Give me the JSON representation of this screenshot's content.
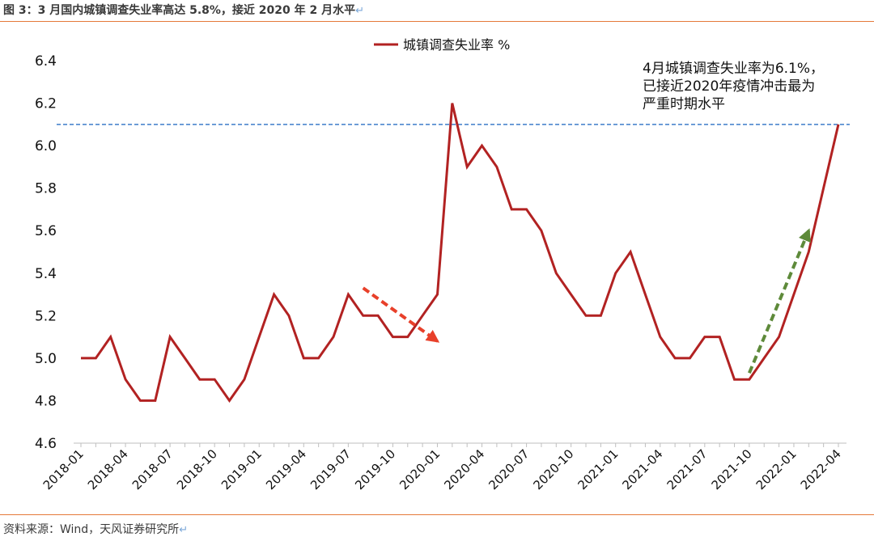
{
  "caption": "图 3：3 月国内城镇调查失业率高达 5.8%，接近 2020 年 2 月水平",
  "source": "资料来源：Wind，天风证券研究所",
  "chart_data": {
    "type": "line",
    "title": "",
    "xlabel": "",
    "ylabel": "",
    "ylim": [
      4.6,
      6.4
    ],
    "yticks": [
      "4.6",
      "4.8",
      "5.0",
      "5.2",
      "5.4",
      "5.6",
      "5.8",
      "6.0",
      "6.2",
      "6.4"
    ],
    "xticks": [
      "2018-01",
      "2018-04",
      "2018-07",
      "2018-10",
      "2019-01",
      "2019-04",
      "2019-07",
      "2019-10",
      "2020-01",
      "2020-04",
      "2020-07",
      "2020-10",
      "2021-01",
      "2021-04",
      "2021-07",
      "2021-10",
      "2022-01",
      "2022-04"
    ],
    "grid": false,
    "legend": "top-center",
    "series": [
      {
        "name": "城镇调查失业率 %",
        "color": "#b22222",
        "x": [
          "2018-01",
          "2018-02",
          "2018-03",
          "2018-04",
          "2018-05",
          "2018-06",
          "2018-07",
          "2018-08",
          "2018-09",
          "2018-10",
          "2018-11",
          "2018-12",
          "2019-01",
          "2019-02",
          "2019-03",
          "2019-04",
          "2019-05",
          "2019-06",
          "2019-07",
          "2019-08",
          "2019-09",
          "2019-10",
          "2019-11",
          "2019-12",
          "2020-01",
          "2020-02",
          "2020-03",
          "2020-04",
          "2020-05",
          "2020-06",
          "2020-07",
          "2020-08",
          "2020-09",
          "2020-10",
          "2020-11",
          "2020-12",
          "2021-01",
          "2021-02",
          "2021-03",
          "2021-04",
          "2021-05",
          "2021-06",
          "2021-07",
          "2021-08",
          "2021-09",
          "2021-10",
          "2021-11",
          "2021-12",
          "2022-01",
          "2022-02",
          "2022-03",
          "2022-04"
        ],
        "values": [
          5.0,
          5.0,
          5.1,
          4.9,
          4.8,
          4.8,
          5.1,
          5.0,
          4.9,
          4.9,
          4.8,
          4.9,
          5.1,
          5.3,
          5.2,
          5.0,
          5.0,
          5.1,
          5.3,
          5.2,
          5.2,
          5.1,
          5.1,
          5.2,
          5.3,
          6.2,
          5.9,
          6.0,
          5.9,
          5.7,
          5.7,
          5.6,
          5.4,
          5.3,
          5.2,
          5.2,
          5.4,
          5.5,
          5.3,
          5.1,
          5.0,
          5.0,
          5.1,
          5.1,
          4.9,
          4.9,
          5.0,
          5.1,
          5.3,
          5.5,
          5.8,
          6.1
        ]
      }
    ],
    "reference_line": {
      "value": 6.1,
      "color": "#3d7cc9",
      "style": "dashed"
    },
    "annotations": [
      {
        "text": [
          "4月城镇调查失业率为6.1%，",
          "已接近2020年疫情冲击最为",
          "严重时期水平"
        ]
      }
    ],
    "arrows": [
      {
        "color": "#e8402a",
        "from": [
          "2019-08",
          5.33
        ],
        "to": [
          "2020-01",
          5.08
        ]
      },
      {
        "color": "#5e8a3a",
        "from": [
          "2021-10",
          4.93
        ],
        "to": [
          "2022-02",
          5.6
        ]
      }
    ]
  }
}
